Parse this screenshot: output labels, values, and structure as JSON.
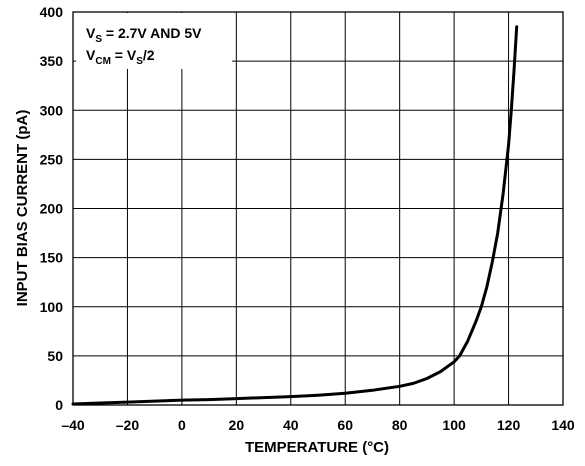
{
  "chart_data": {
    "type": "line",
    "title": "",
    "xlabel": "TEMPERATURE (°C)",
    "ylabel": "INPUT BIAS CURRENT (pA)",
    "xlim": [
      -40,
      140
    ],
    "ylim": [
      0,
      400
    ],
    "x_ticks": [
      "–40",
      "–20",
      "0",
      "20",
      "40",
      "60",
      "80",
      "100",
      "120",
      "140"
    ],
    "y_ticks": [
      "0",
      "50",
      "100",
      "150",
      "200",
      "250",
      "300",
      "350",
      "400"
    ],
    "grid": true,
    "line_color": "#000000",
    "annotations": {
      "line1": {
        "main": "V",
        "sub": "S",
        "rest": " = 2.7V AND 5V"
      },
      "line2": {
        "main": "V",
        "sub": "CM",
        "mid": " = V",
        "sub2": "S",
        "rest": "/2"
      }
    },
    "series": [
      {
        "x": [
          -40,
          -30,
          -20,
          -10,
          0,
          10,
          20,
          30,
          40,
          50,
          60,
          70,
          80,
          85,
          90,
          95,
          100,
          102,
          105,
          108,
          110,
          112,
          114,
          116,
          118,
          120,
          121,
          122,
          123
        ],
        "y": [
          1,
          2,
          3,
          4,
          5,
          5.5,
          6.5,
          7.5,
          8.5,
          10,
          12,
          15,
          19,
          22,
          27,
          34,
          44,
          50,
          65,
          85,
          100,
          120,
          145,
          175,
          215,
          265,
          300,
          340,
          385
        ]
      }
    ]
  }
}
